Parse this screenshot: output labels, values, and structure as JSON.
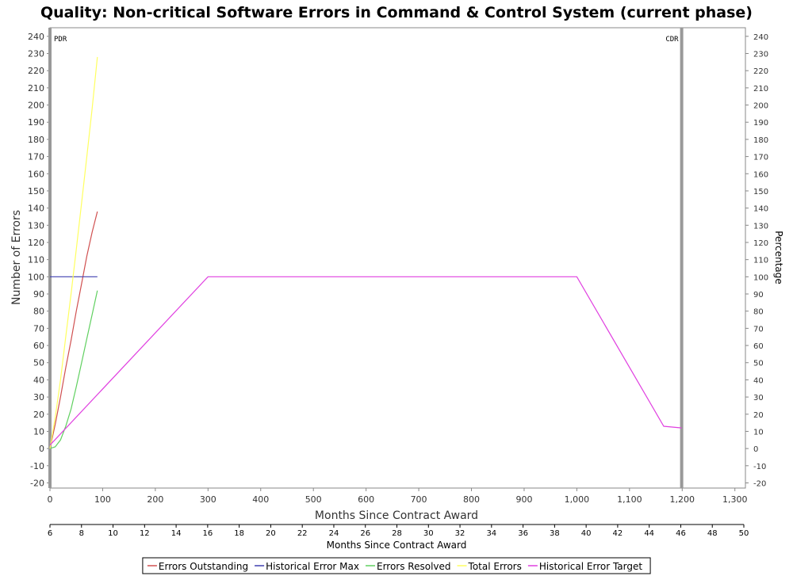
{
  "chart_data": {
    "type": "line",
    "title": "Quality: Non-critical Software Errors in Command & Control System (current phase)",
    "xlabel": "Months Since Contract Award",
    "x2label": "Months Since Contract Award",
    "ylabel": "Number of Errors",
    "y2label": "Percentage",
    "xlim": [
      0,
      1320
    ],
    "ylim": [
      -23,
      245
    ],
    "x_ticks": [
      "0",
      "100",
      "200",
      "300",
      "400",
      "500",
      "600",
      "700",
      "800",
      "900",
      "1,000",
      "1,100",
      "1,200",
      "1,300"
    ],
    "x_tick_values": [
      0,
      100,
      200,
      300,
      400,
      500,
      600,
      700,
      800,
      900,
      1000,
      1100,
      1200,
      1300
    ],
    "x2lim": [
      6,
      50
    ],
    "x2_ticks": [
      "6",
      "8",
      "10",
      "12",
      "14",
      "16",
      "18",
      "20",
      "22",
      "24",
      "26",
      "28",
      "30",
      "32",
      "34",
      "36",
      "38",
      "40",
      "42",
      "44",
      "46",
      "48",
      "50"
    ],
    "y_ticks": [
      "-20",
      "-10",
      "0",
      "10",
      "20",
      "30",
      "40",
      "50",
      "60",
      "70",
      "80",
      "90",
      "100",
      "110",
      "120",
      "130",
      "140",
      "150",
      "160",
      "170",
      "180",
      "190",
      "200",
      "210",
      "220",
      "230",
      "240"
    ],
    "y2_ticks": [
      "-20",
      "-10",
      "0",
      "10",
      "20",
      "30",
      "40",
      "50",
      "60",
      "70",
      "80",
      "90",
      "100",
      "110",
      "120",
      "130",
      "140",
      "150",
      "160",
      "170",
      "180",
      "190",
      "200",
      "210",
      "220",
      "230",
      "240"
    ],
    "markers": [
      {
        "label": "PDR",
        "x": 0
      },
      {
        "label": "CDR",
        "x": 1199
      }
    ],
    "series": [
      {
        "name": "Errors Outstanding",
        "color": "#d05050",
        "x": [
          0,
          10,
          20,
          30,
          40,
          50,
          60,
          70,
          80,
          90
        ],
        "y": [
          0,
          14,
          30,
          47,
          63,
          80,
          96,
          112,
          126,
          138
        ]
      },
      {
        "name": "Historical Error Max",
        "color": "#4040b0",
        "x": [
          0,
          90
        ],
        "y": [
          100,
          100
        ]
      },
      {
        "name": "Errors Resolved",
        "color": "#60d060",
        "x": [
          0,
          10,
          20,
          30,
          40,
          50,
          60,
          70,
          80,
          90
        ],
        "y": [
          0,
          1,
          5,
          13,
          23,
          36,
          50,
          64,
          78,
          92
        ]
      },
      {
        "name": "Total Errors",
        "color": "#ffff60",
        "x": [
          0,
          10,
          20,
          30,
          40,
          50,
          60,
          70,
          80,
          90
        ],
        "y": [
          0,
          18,
          40,
          65,
          90,
          116,
          143,
          170,
          198,
          228
        ]
      },
      {
        "name": "Historical Error Target",
        "color": "#e040e0",
        "x": [
          0,
          300,
          1000,
          1165,
          1199
        ],
        "y": [
          2,
          100,
          100,
          13,
          12
        ]
      }
    ],
    "legend": "bottom",
    "grid": false
  }
}
